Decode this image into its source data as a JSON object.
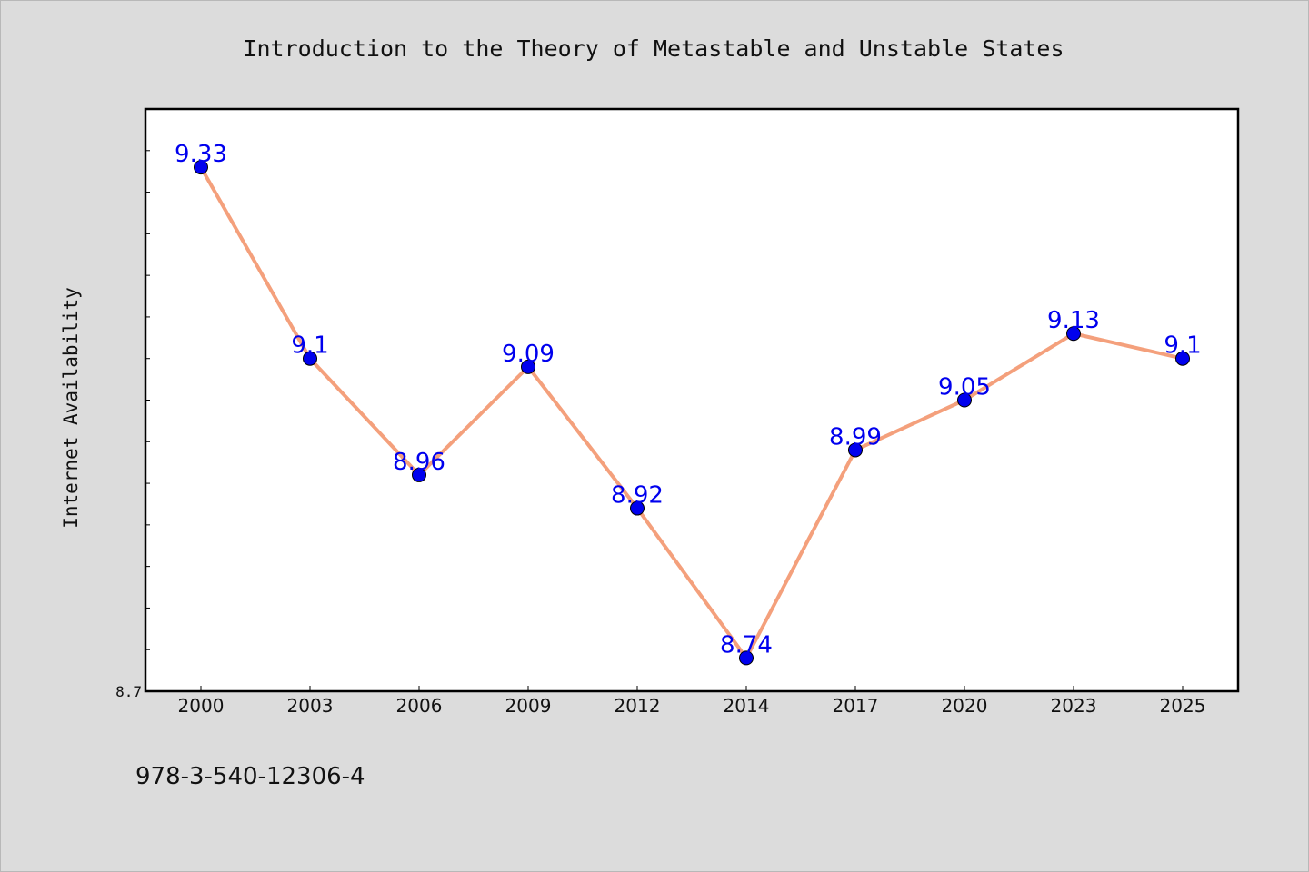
{
  "chart_data": {
    "type": "line",
    "title": "Introduction to the Theory of Metastable and Unstable States",
    "xlabel": "",
    "ylabel": "Internet Availability",
    "categories": [
      "2000",
      "2003",
      "2006",
      "2009",
      "2012",
      "2014",
      "2017",
      "2020",
      "2023",
      "2025"
    ],
    "series": [
      {
        "values": [
          9.33,
          9.1,
          8.96,
          9.09,
          8.92,
          8.74,
          8.99,
          9.05,
          9.13,
          9.1
        ],
        "labels": [
          "9.33",
          "9.1",
          "8.96",
          "9.09",
          "8.92",
          "8.74",
          "8.99",
          "9.05",
          "9.13",
          "9.1"
        ],
        "line_color": "#f4a07c",
        "marker_color": "#0000ee"
      }
    ],
    "ylim": [
      8.7,
      9.4
    ],
    "ytick_labels": [
      "8.7"
    ],
    "grid": false,
    "legend": false
  },
  "footer": {
    "isbn": "978-3-540-12306-4"
  }
}
